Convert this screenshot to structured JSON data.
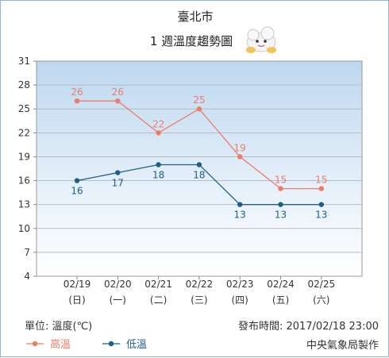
{
  "header": {
    "city": "臺北市",
    "subtitle": "1 週溫度趨勢圖"
  },
  "chart_data": {
    "type": "line",
    "categories": [
      "02/19",
      "02/20",
      "02/21",
      "02/22",
      "02/23",
      "02/24",
      "02/25"
    ],
    "weekdays": [
      "(日)",
      "(一)",
      "(二)",
      "(三)",
      "(四)",
      "(五)",
      "(六)"
    ],
    "series": [
      {
        "name": "高溫",
        "color": "#f07a68",
        "values": [
          26,
          26,
          22,
          25,
          19,
          15,
          15
        ]
      },
      {
        "name": "低溫",
        "color": "#1f5f85",
        "values": [
          16,
          17,
          18,
          18,
          13,
          13,
          13
        ]
      }
    ],
    "ylim": [
      4,
      31
    ],
    "yticks": [
      4,
      7,
      10,
      13,
      16,
      19,
      22,
      25,
      28,
      31
    ],
    "grid": true,
    "legend": "bottom-left"
  },
  "footer": {
    "unit_label": "單位: 溫度(℃)",
    "published": "發布時間: 2017/02/18 23:00",
    "source": "中央氣象局製作"
  },
  "icons": {
    "mascot": "cloud-mascot-icon"
  }
}
